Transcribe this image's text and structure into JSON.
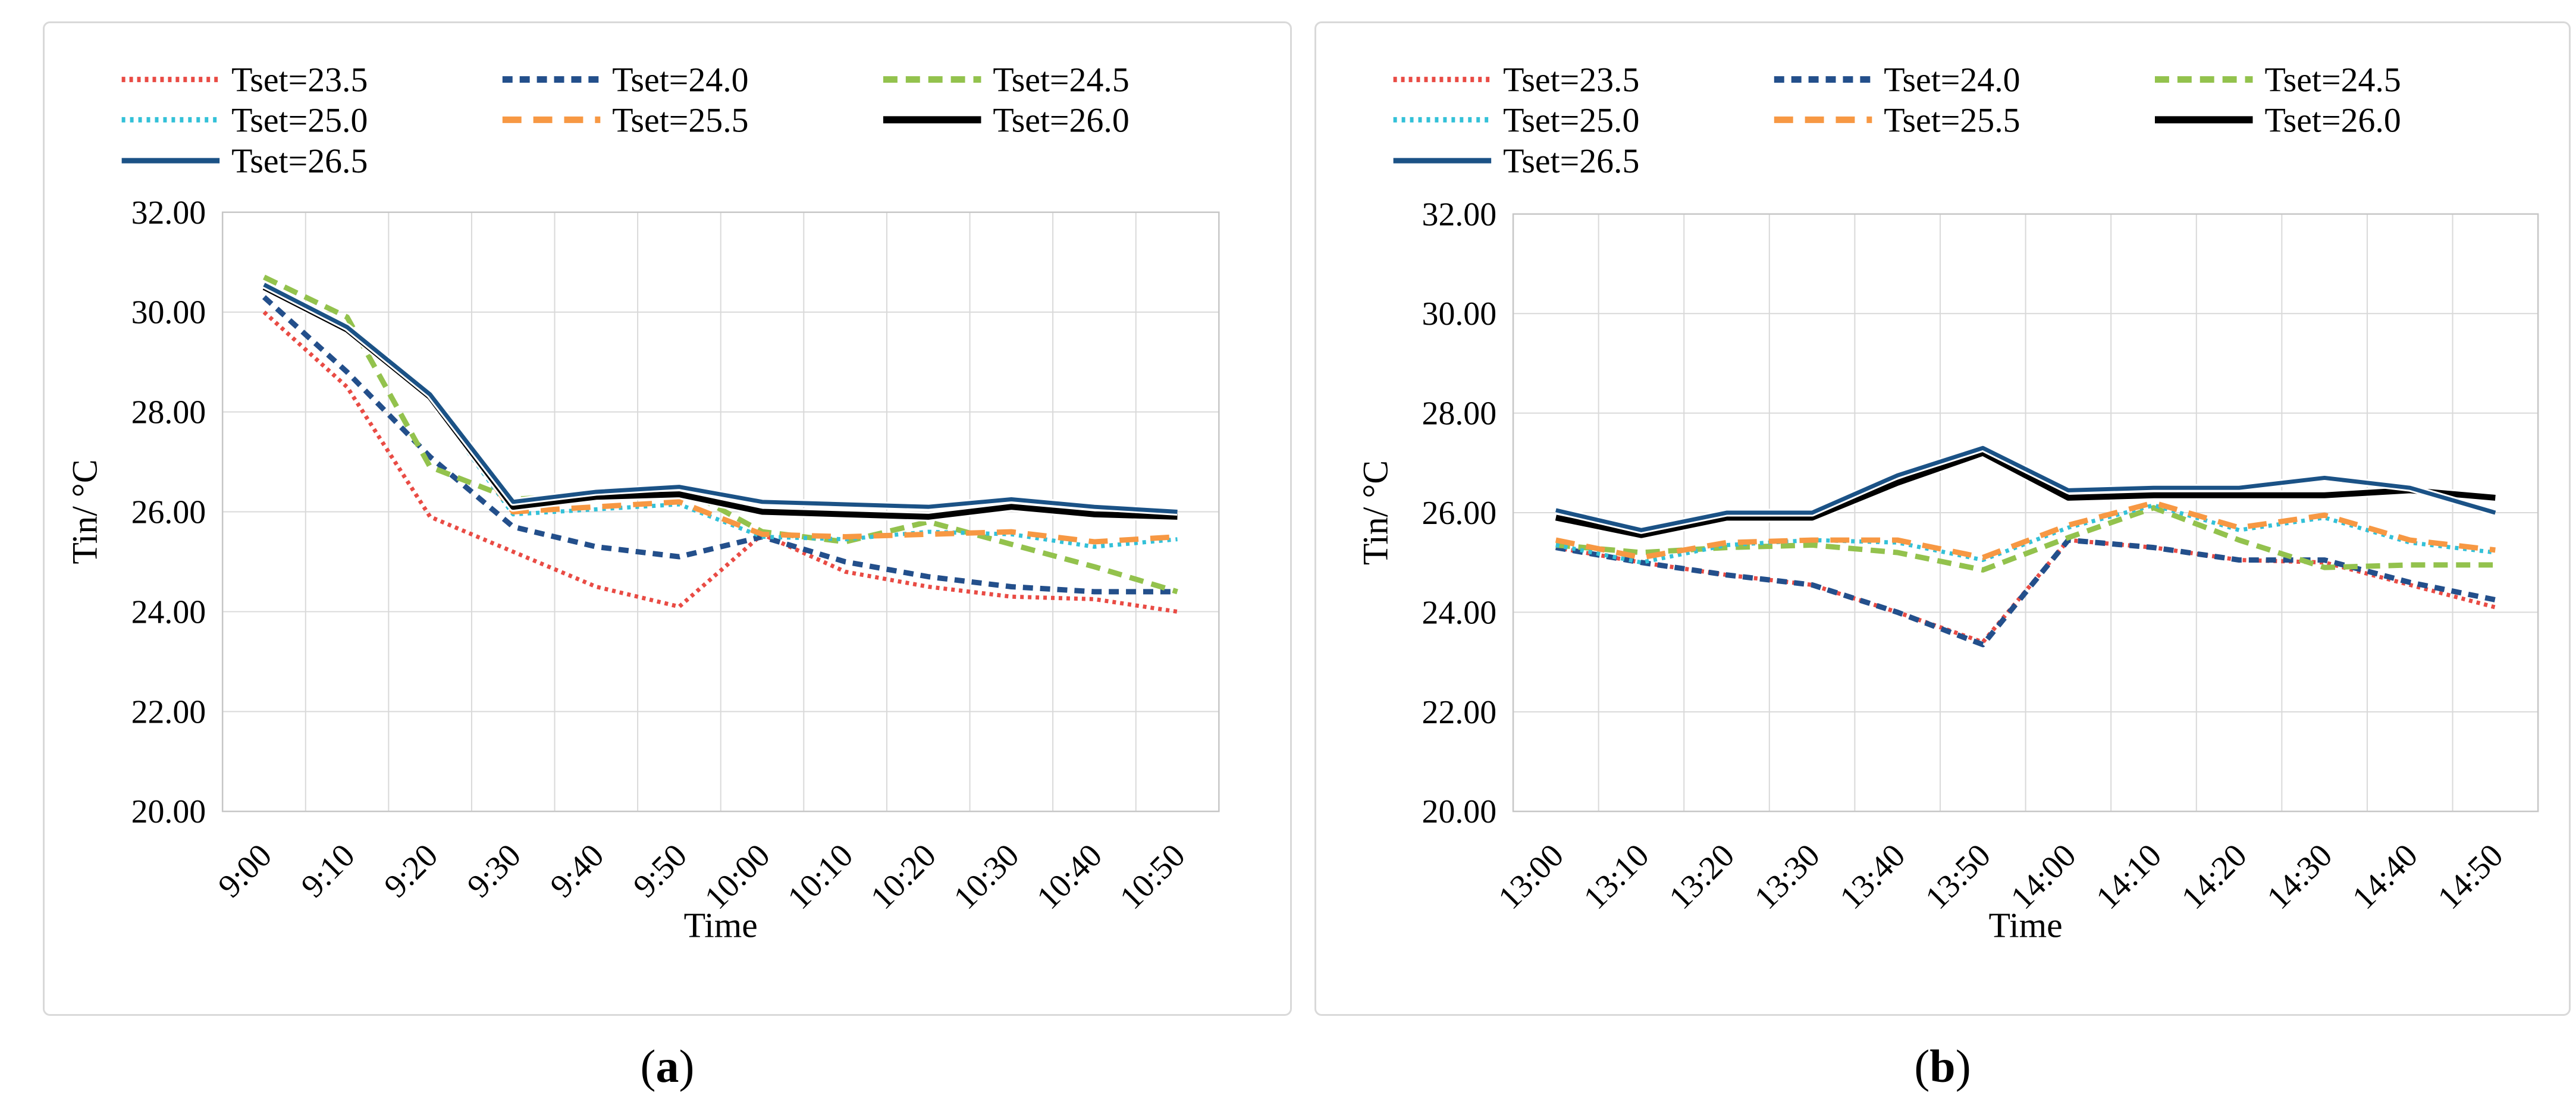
{
  "chart_data": [
    {
      "type": "line",
      "panel_id": "a",
      "caption_prefix": "(",
      "caption_letter": "a",
      "caption_suffix": ")",
      "xlabel": "Time",
      "ylabel": "Tin/ °C",
      "ylim": [
        20,
        32
      ],
      "ytick_step": 2,
      "ytick_labels": [
        "32.00",
        "30.00",
        "28.00",
        "26.00",
        "24.00",
        "22.00",
        "20.00"
      ],
      "grid": true,
      "legend_position": "top-left",
      "categories": [
        "9:00",
        "9:10",
        "9:20",
        "9:30",
        "9:40",
        "9:50",
        "10:00",
        "10:10",
        "10:20",
        "10:30",
        "10:40",
        "10:50"
      ],
      "series": [
        {
          "name": "Tset=23.5",
          "color": "#e94b44",
          "values": [
            30.0,
            28.5,
            25.9,
            25.2,
            24.5,
            24.1,
            25.55,
            24.8,
            24.5,
            24.3,
            24.25,
            24.0
          ]
        },
        {
          "name": "Tset=24.0",
          "color": "#234f8b",
          "values": [
            30.3,
            28.8,
            27.1,
            25.7,
            25.3,
            25.1,
            25.5,
            25.0,
            24.7,
            24.5,
            24.4,
            24.4
          ]
        },
        {
          "name": "Tset=24.5",
          "color": "#93c24d",
          "values": [
            30.7,
            29.9,
            26.9,
            26.25,
            26.35,
            26.5,
            25.6,
            25.4,
            25.8,
            25.35,
            24.9,
            24.4
          ]
        },
        {
          "name": "Tset=25.0",
          "color": "#33c1d8",
          "values": [
            30.45,
            29.65,
            28.25,
            25.95,
            26.05,
            26.15,
            25.5,
            25.45,
            25.6,
            25.55,
            25.3,
            25.45
          ]
        },
        {
          "name": "Tset=25.5",
          "color": "#f79843",
          "values": [
            30.5,
            29.7,
            28.3,
            26.0,
            26.1,
            26.2,
            25.55,
            25.5,
            25.55,
            25.6,
            25.4,
            25.5
          ]
        },
        {
          "name": "Tset=26.0",
          "color": "#000000",
          "values": [
            30.5,
            29.65,
            28.3,
            26.1,
            26.3,
            26.35,
            26.0,
            25.95,
            25.9,
            26.1,
            25.95,
            25.9
          ]
        },
        {
          "name": "Tset=26.5",
          "color": "#1b5286",
          "values": [
            30.55,
            29.7,
            28.35,
            26.2,
            26.4,
            26.5,
            26.2,
            26.15,
            26.1,
            26.25,
            26.1,
            26.0
          ]
        }
      ]
    },
    {
      "type": "line",
      "panel_id": "b",
      "caption_prefix": "(",
      "caption_letter": "b",
      "caption_suffix": ")",
      "xlabel": "Time",
      "ylabel": "Tin/ °C",
      "ylim": [
        20,
        32
      ],
      "ytick_step": 2,
      "ytick_labels": [
        "32.00",
        "30.00",
        "28.00",
        "26.00",
        "24.00",
        "22.00",
        "20.00"
      ],
      "grid": true,
      "legend_position": "top-left",
      "categories": [
        "13:00",
        "13:10",
        "13:20",
        "13:30",
        "13:40",
        "13:50",
        "14:00",
        "14:10",
        "14:20",
        "14:30",
        "14:40",
        "14:50"
      ],
      "series": [
        {
          "name": "Tset=23.5",
          "color": "#e94b44",
          "values": [
            25.3,
            25.0,
            24.75,
            24.55,
            24.0,
            23.4,
            25.45,
            25.3,
            25.05,
            25.0,
            24.55,
            24.1
          ]
        },
        {
          "name": "Tset=24.0",
          "color": "#234f8b",
          "values": [
            25.3,
            25.0,
            24.75,
            24.55,
            24.0,
            23.35,
            25.45,
            25.3,
            25.05,
            25.05,
            24.6,
            24.25
          ]
        },
        {
          "name": "Tset=24.5",
          "color": "#93c24d",
          "values": [
            25.35,
            25.2,
            25.3,
            25.35,
            25.2,
            24.85,
            25.5,
            26.1,
            25.45,
            24.9,
            24.95,
            24.95
          ]
        },
        {
          "name": "Tset=25.0",
          "color": "#33c1d8",
          "values": [
            25.35,
            25.0,
            25.35,
            25.45,
            25.4,
            25.05,
            25.7,
            26.15,
            25.65,
            25.9,
            25.4,
            25.2
          ]
        },
        {
          "name": "Tset=25.5",
          "color": "#f79843",
          "values": [
            25.45,
            25.1,
            25.4,
            25.45,
            25.45,
            25.1,
            25.75,
            26.2,
            25.7,
            25.95,
            25.45,
            25.25
          ]
        },
        {
          "name": "Tset=26.0",
          "color": "#000000",
          "values": [
            25.9,
            25.55,
            25.9,
            25.9,
            26.6,
            27.2,
            26.3,
            26.35,
            26.35,
            26.35,
            26.45,
            26.3
          ]
        },
        {
          "name": "Tset=26.5",
          "color": "#1b5286",
          "values": [
            26.05,
            25.65,
            26.0,
            26.0,
            26.75,
            27.3,
            26.45,
            26.5,
            26.5,
            26.7,
            26.5,
            26.0
          ]
        }
      ]
    }
  ]
}
